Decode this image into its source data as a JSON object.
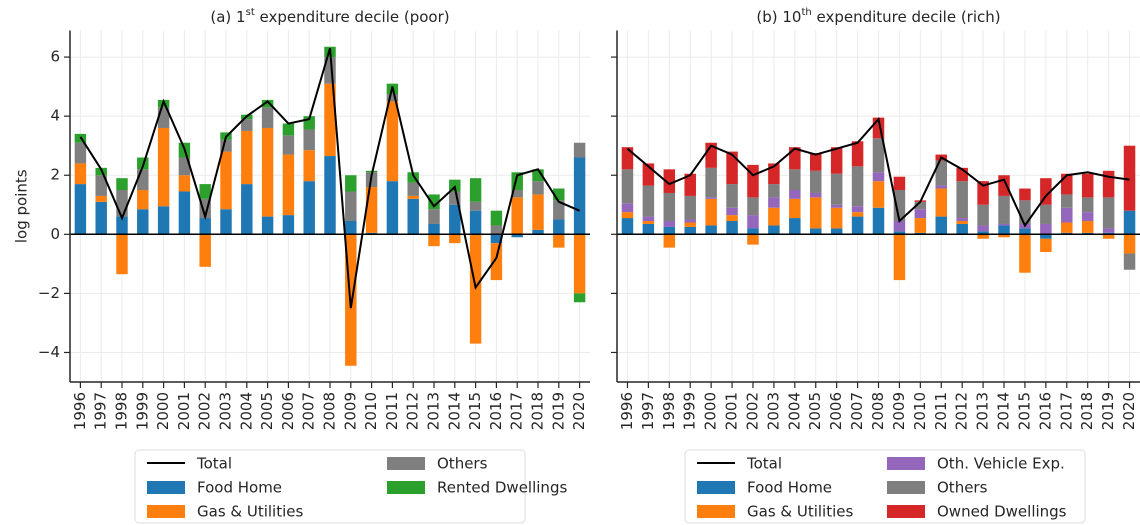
{
  "chart_data": [
    {
      "type": "bar",
      "title_parts": [
        "(a) 1",
        "st",
        " expenditure decile (poor)"
      ],
      "ylabel": "log points",
      "categories": [
        "1996",
        "1997",
        "1998",
        "1999",
        "2000",
        "2001",
        "2002",
        "2003",
        "2004",
        "2005",
        "2006",
        "2007",
        "2008",
        "2009",
        "2010",
        "2011",
        "2012",
        "2013",
        "2014",
        "2015",
        "2016",
        "2017",
        "2018",
        "2019",
        "2020"
      ],
      "ylim": [
        -5,
        6.9
      ],
      "yticks": [
        {
          "value": -4,
          "label": "−4"
        },
        {
          "value": -2,
          "label": "−2"
        },
        0,
        2,
        4,
        6
      ],
      "grid": true,
      "total": {
        "name": "Total",
        "color": "#000000",
        "values": [
          3.3,
          2.2,
          0.55,
          2.3,
          4.5,
          2.9,
          0.6,
          3.3,
          4.0,
          4.5,
          3.75,
          3.9,
          6.3,
          -2.5,
          2.0,
          5.0,
          2.0,
          0.95,
          1.6,
          -1.8,
          -0.8,
          2.0,
          2.2,
          1.1,
          0.8
        ]
      },
      "series": [
        {
          "name": "Food Home",
          "color": "#1f77b4",
          "values": [
            1.7,
            1.1,
            0.6,
            0.85,
            0.95,
            1.45,
            0.55,
            0.85,
            1.7,
            0.6,
            0.65,
            1.8,
            2.65,
            0.45,
            0.05,
            1.8,
            1.2,
            0.35,
            1.0,
            0.8,
            -0.3,
            -0.1,
            0.15,
            0.5,
            2.6
          ]
        },
        {
          "name": "Gas & Utilities",
          "color": "#ff7f0e",
          "values": [
            0.7,
            0.2,
            -1.35,
            0.65,
            2.65,
            0.55,
            -1.1,
            1.95,
            1.8,
            3.0,
            2.05,
            1.05,
            2.45,
            -4.45,
            1.55,
            2.7,
            0.1,
            -0.4,
            -0.3,
            -3.7,
            -1.25,
            1.25,
            1.2,
            -0.45,
            -2.0
          ]
        },
        {
          "name": "Others",
          "color": "#7f7f7f",
          "values": [
            0.7,
            0.7,
            0.9,
            0.7,
            0.7,
            0.6,
            0.65,
            0.4,
            0.4,
            0.7,
            0.65,
            0.7,
            0.9,
            1.0,
            0.5,
            0.25,
            0.45,
            0.5,
            0.45,
            0.3,
            0.3,
            0.25,
            0.45,
            0.65,
            0.5
          ]
        },
        {
          "name": "Rented Dwellings",
          "color": "#2ca02c",
          "values": [
            0.3,
            0.25,
            0.4,
            0.4,
            0.25,
            0.5,
            0.5,
            0.25,
            0.15,
            0.25,
            0.4,
            0.45,
            0.35,
            0.55,
            0.05,
            0.35,
            0.35,
            0.5,
            0.4,
            0.8,
            0.5,
            0.6,
            0.4,
            0.4,
            -0.3
          ]
        }
      ]
    },
    {
      "type": "bar",
      "title_parts": [
        "(b) 10",
        "th",
        " expenditure decile (rich)"
      ],
      "categories": [
        "1996",
        "1997",
        "1998",
        "1999",
        "2000",
        "2001",
        "2002",
        "2003",
        "2004",
        "2005",
        "2006",
        "2007",
        "2008",
        "2009",
        "2010",
        "2011",
        "2012",
        "2013",
        "2014",
        "2015",
        "2016",
        "2017",
        "2018",
        "2019",
        "2020"
      ],
      "ylim": [
        -5,
        6.9
      ],
      "yticks": [
        -4,
        -2,
        0,
        2,
        4,
        6
      ],
      "grid": true,
      "total": {
        "name": "Total",
        "color": "#000000",
        "values": [
          2.9,
          2.3,
          1.7,
          2.0,
          3.0,
          2.7,
          2.0,
          2.3,
          2.9,
          2.7,
          2.9,
          3.1,
          3.9,
          0.45,
          1.1,
          2.6,
          2.2,
          1.65,
          1.85,
          0.3,
          1.3,
          2.0,
          2.1,
          1.95,
          1.85
        ]
      },
      "series": [
        {
          "name": "Food Home",
          "color": "#1f77b4",
          "values": [
            0.55,
            0.35,
            0.25,
            0.25,
            0.3,
            0.45,
            0.2,
            0.3,
            0.55,
            0.2,
            0.2,
            0.6,
            0.9,
            0.1,
            0.05,
            0.6,
            0.35,
            0.1,
            0.3,
            0.2,
            -0.15,
            0.05,
            0.05,
            0.05,
            0.8
          ]
        },
        {
          "name": "Gas & Utilities",
          "color": "#ff7f0e",
          "values": [
            0.2,
            0.1,
            -0.45,
            0.15,
            0.9,
            0.2,
            -0.35,
            0.6,
            0.65,
            1.05,
            0.7,
            0.15,
            0.9,
            -1.55,
            0.5,
            0.95,
            0.1,
            -0.15,
            -0.1,
            -1.3,
            -0.45,
            0.35,
            0.4,
            -0.15,
            -0.65
          ]
        },
        {
          "name": "Oth. Vehicle Exp.",
          "color": "#9467bd",
          "values": [
            0.3,
            0.15,
            0.2,
            0.1,
            0.05,
            0.25,
            0.45,
            0.35,
            0.3,
            0.15,
            0.1,
            0.2,
            0.3,
            0.35,
            0.3,
            0.1,
            0.1,
            0.2,
            0.05,
            0.15,
            0.35,
            0.5,
            0.3,
            0.15,
            0
          ]
        },
        {
          "name": "Others",
          "color": "#7f7f7f",
          "values": [
            1.15,
            1.05,
            0.95,
            0.8,
            1.0,
            0.8,
            0.6,
            0.45,
            0.7,
            0.75,
            1.05,
            1.35,
            1.15,
            1.05,
            0.25,
            0.85,
            1.25,
            0.7,
            0.95,
            0.8,
            0.65,
            0.45,
            0.5,
            1.05,
            -0.55
          ]
        },
        {
          "name": "Owned Dwellings",
          "color": "#d62728",
          "values": [
            0.75,
            0.75,
            0.8,
            0.75,
            0.85,
            1.1,
            1.1,
            0.7,
            0.75,
            0.6,
            0.9,
            0.85,
            0.7,
            0.45,
            0.05,
            0.2,
            0.45,
            0.8,
            0.7,
            0.4,
            0.9,
            0.7,
            0.8,
            0.9,
            2.2
          ]
        }
      ]
    }
  ]
}
